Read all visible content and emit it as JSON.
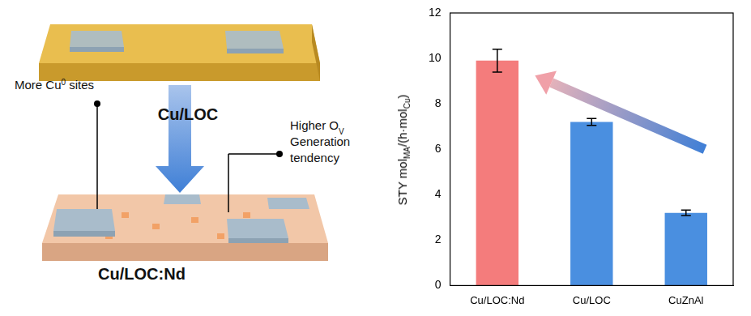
{
  "diagram": {
    "plates": [
      {
        "label": "Cu/LOC"
      },
      {
        "label": "Cu/LOC:Nd"
      }
    ],
    "annotations": [
      {
        "lines": [
          [
            {
              "text": "More Cu"
            },
            {
              "text": "0",
              "sup": true
            },
            {
              "text": " sites"
            }
          ]
        ]
      },
      {
        "lines": [
          [
            {
              "text": "Higher O"
            },
            {
              "text": "V",
              "sub": true
            }
          ],
          [
            {
              "text": "Generation"
            }
          ],
          [
            {
              "text": "tendency"
            }
          ]
        ]
      }
    ]
  },
  "chart_data": {
    "type": "bar",
    "categories": [
      "Cu/LOC:Nd",
      "Cu/LOC",
      "CuZnAl"
    ],
    "values": [
      9.9,
      7.2,
      3.2
    ],
    "errors": [
      0.5,
      0.15,
      0.12
    ],
    "colors": [
      "#f47c7c",
      "#4a8fe0",
      "#4a8fe0"
    ],
    "y_label": [
      {
        "text": "STY mol"
      },
      {
        "text": "MA",
        "sub": true
      },
      {
        "text": "/(h·mol"
      },
      {
        "text": "Cu",
        "sub": true
      },
      {
        "text": ")"
      }
    ],
    "ylim": [
      0,
      12
    ],
    "yticks": [
      0,
      2,
      4,
      6,
      8,
      10,
      12
    ],
    "grid": false
  }
}
